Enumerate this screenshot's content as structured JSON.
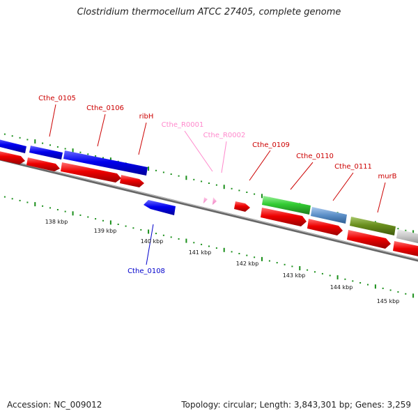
{
  "title": "Clostridium thermocellum ATCC 27405, complete genome",
  "accession": "Accession: NC_009012",
  "topology": "Topology: circular; Length: 3,843,301 bp; Genes: 3,259",
  "colors": {
    "cds_forward": "#0000ee",
    "cds_reverse": "#ee0000",
    "rrna_light": "#ff9fd6",
    "green": "#33cc33",
    "steel": "#5b8fc7",
    "olive": "#6a8f1e",
    "gray": "#bdbdbd",
    "backbone": "#808080",
    "ticks": "#1a8f1a"
  },
  "tick_labels": [
    "138 kbp",
    "139 kbp",
    "140 kbp",
    "141 kbp",
    "142 kbp",
    "143 kbp",
    "144 kbp",
    "145 kbp"
  ],
  "gene_labels": [
    {
      "text": "Cthe_0105",
      "color": "#cc0000"
    },
    {
      "text": "Cthe_0106",
      "color": "#cc0000"
    },
    {
      "text": "ribH",
      "color": "#cc0000"
    },
    {
      "text": "Cthe_R0001",
      "color": "#ff88cc"
    },
    {
      "text": "Cthe_R0002",
      "color": "#ff88cc"
    },
    {
      "text": "Cthe_0109",
      "color": "#cc0000"
    },
    {
      "text": "Cthe_0110",
      "color": "#cc0000"
    },
    {
      "text": "Cthe_0111",
      "color": "#cc0000"
    },
    {
      "text": "murB",
      "color": "#cc0000"
    },
    {
      "text": "Cthe_0108",
      "color": "#0000cc"
    }
  ]
}
